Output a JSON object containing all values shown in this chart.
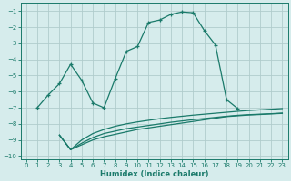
{
  "xlabel": "Humidex (Indice chaleur)",
  "bg_color": "#d6ecec",
  "grid_color": "#b0cccc",
  "line_color": "#1a7a6a",
  "xlim": [
    -0.5,
    23.5
  ],
  "ylim": [
    -10.2,
    -0.5
  ],
  "yticks": [
    -1,
    -2,
    -3,
    -4,
    -5,
    -6,
    -7,
    -8,
    -9,
    -10
  ],
  "xticks": [
    0,
    1,
    2,
    3,
    4,
    5,
    6,
    7,
    8,
    9,
    10,
    11,
    12,
    13,
    14,
    15,
    16,
    17,
    18,
    19,
    20,
    21,
    22,
    23
  ],
  "curve1_x": [
    1,
    2,
    3,
    4,
    5,
    6,
    7,
    8,
    9,
    10,
    11,
    12,
    13,
    14,
    15,
    16,
    17,
    18,
    19
  ],
  "curve1_y": [
    -7.0,
    -6.2,
    -5.5,
    -4.3,
    -5.3,
    -6.7,
    -7.0,
    -5.2,
    -3.5,
    -3.2,
    -1.7,
    -1.55,
    -1.2,
    -1.05,
    -1.1,
    -2.2,
    -3.1,
    -6.5,
    -7.05
  ],
  "curve2_x": [
    3,
    4,
    5,
    6,
    7,
    8,
    9,
    10,
    11,
    12,
    13,
    14,
    15,
    16,
    17,
    18,
    19,
    20,
    21,
    22,
    23
  ],
  "curve2_y": [
    -8.7,
    -9.6,
    -9.3,
    -9.0,
    -8.8,
    -8.65,
    -8.5,
    -8.35,
    -8.25,
    -8.15,
    -8.05,
    -7.95,
    -7.85,
    -7.75,
    -7.65,
    -7.55,
    -7.5,
    -7.45,
    -7.42,
    -7.38,
    -7.35
  ],
  "curve3_x": [
    3,
    4,
    5,
    6,
    7,
    8,
    9,
    10,
    11,
    12,
    13,
    14,
    15,
    16,
    17,
    18,
    19,
    20,
    21,
    22,
    23
  ],
  "curve3_y": [
    -8.7,
    -9.6,
    -9.2,
    -8.85,
    -8.6,
    -8.45,
    -8.3,
    -8.2,
    -8.1,
    -8.0,
    -7.9,
    -7.82,
    -7.74,
    -7.67,
    -7.6,
    -7.53,
    -7.47,
    -7.43,
    -7.4,
    -7.37,
    -7.33
  ],
  "curve4_x": [
    3,
    4,
    5,
    6,
    7,
    8,
    9,
    10,
    11,
    12,
    13,
    14,
    15,
    16,
    17,
    18,
    19,
    20,
    21,
    22,
    23
  ],
  "curve4_y": [
    -8.7,
    -9.6,
    -9.0,
    -8.6,
    -8.35,
    -8.15,
    -8.0,
    -7.88,
    -7.78,
    -7.68,
    -7.6,
    -7.53,
    -7.46,
    -7.4,
    -7.34,
    -7.28,
    -7.22,
    -7.17,
    -7.13,
    -7.09,
    -7.05
  ]
}
